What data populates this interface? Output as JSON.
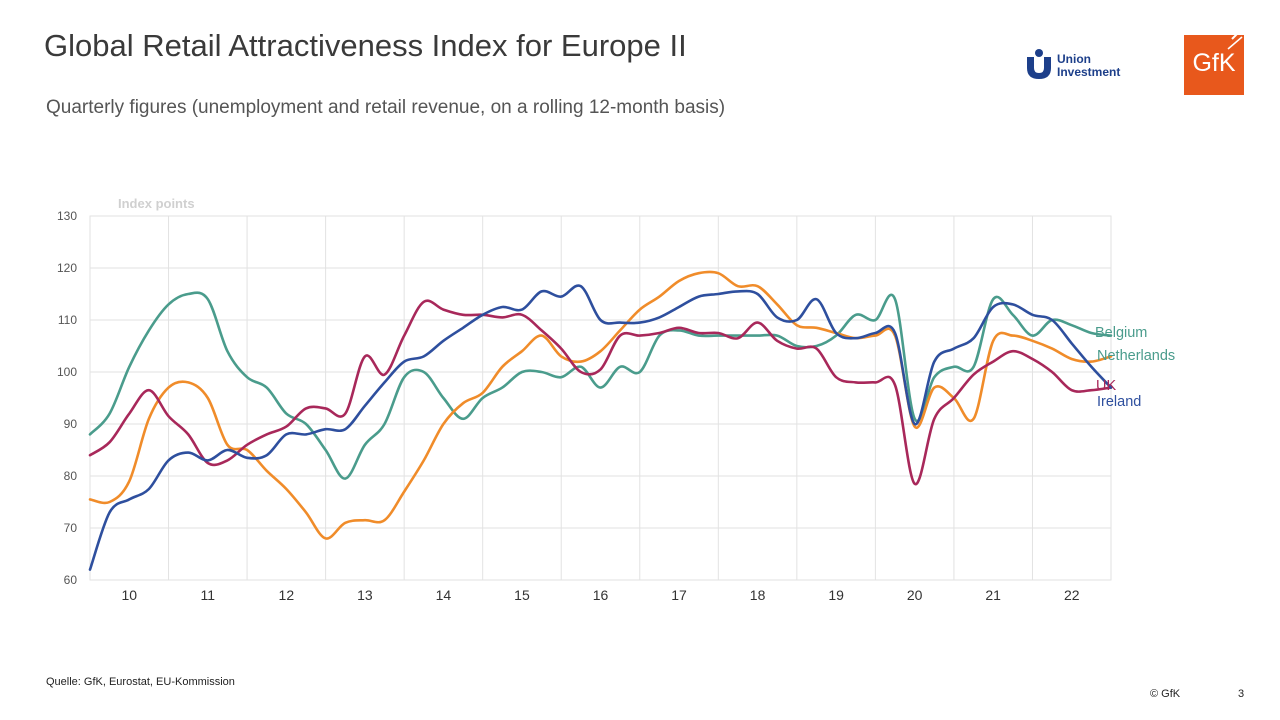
{
  "header": {
    "title": "Global Retail Attractiveness Index for Europe II",
    "subtitle": "Quarterly figures (unemployment and retail revenue, on a rolling 12-month basis)"
  },
  "logos": {
    "union_investment": "Union\nInvestment",
    "gfk": "GfK"
  },
  "footer": {
    "source": "Quelle: GfK, Eurostat, EU-Kommission",
    "copyright": "© GfK",
    "page": "3"
  },
  "colors": {
    "Belgium": "#4a9c8c",
    "Netherlands": "#f08c2a",
    "UK": "#a8285a",
    "Ireland": "#2e4f9e",
    "grid": "#e2e2e2",
    "gfk_orange": "#e8581c"
  },
  "chart_data": {
    "type": "line",
    "ylabel": "Index points",
    "ylim": [
      60,
      130
    ],
    "yticks": [
      60,
      70,
      80,
      90,
      100,
      110,
      120,
      130
    ],
    "xlim": [
      9.5,
      22.5
    ],
    "xticks": [
      "10",
      "11",
      "12",
      "13",
      "14",
      "15",
      "16",
      "17",
      "18",
      "19",
      "20",
      "21",
      "22"
    ],
    "grid": true,
    "legend": "right, at line ends",
    "series": [
      {
        "name": "Belgium",
        "x": [
          9.5,
          9.75,
          10.0,
          10.25,
          10.5,
          10.75,
          11.0,
          11.25,
          11.5,
          11.75,
          12.0,
          12.25,
          12.5,
          12.75,
          13.0,
          13.25,
          13.5,
          13.75,
          14.0,
          14.25,
          14.5,
          14.75,
          15.0,
          15.25,
          15.5,
          15.75,
          16.0,
          16.25,
          16.5,
          16.75,
          17.0,
          17.25,
          17.5,
          17.75,
          18.0,
          18.25,
          18.5,
          18.75,
          19.0,
          19.25,
          19.5,
          19.75,
          20.0,
          20.25,
          20.5,
          20.75,
          21.0,
          21.25,
          21.5,
          21.75,
          22.0,
          22.25,
          22.5
        ],
        "y": [
          88,
          92,
          101,
          108,
          113,
          115,
          114,
          104,
          99,
          97,
          92,
          90,
          85,
          79.5,
          86,
          90,
          99,
          100,
          95,
          91,
          95,
          97,
          100,
          100,
          99,
          101,
          97,
          101,
          100,
          107,
          108,
          107,
          107,
          107,
          107,
          107,
          105,
          105,
          107,
          111,
          110,
          114,
          91,
          99,
          101,
          101,
          114,
          111,
          107,
          110,
          109,
          107.5,
          107
        ]
      },
      {
        "name": "Netherlands",
        "x": [
          9.5,
          9.75,
          10.0,
          10.25,
          10.5,
          10.75,
          11.0,
          11.25,
          11.5,
          11.75,
          12.0,
          12.25,
          12.5,
          12.75,
          13.0,
          13.25,
          13.5,
          13.75,
          14.0,
          14.25,
          14.5,
          14.75,
          15.0,
          15.25,
          15.5,
          15.75,
          16.0,
          16.25,
          16.5,
          16.75,
          17.0,
          17.25,
          17.5,
          17.75,
          18.0,
          18.25,
          18.5,
          18.75,
          19.0,
          19.25,
          19.5,
          19.75,
          20.0,
          20.25,
          20.5,
          20.75,
          21.0,
          21.25,
          21.5,
          21.75,
          22.0,
          22.25,
          22.5
        ],
        "y": [
          75.5,
          75,
          79,
          91,
          97,
          98,
          95,
          86,
          85,
          81,
          77.5,
          73,
          68,
          71,
          71.5,
          71.5,
          77,
          83,
          90,
          94,
          96,
          101,
          104,
          107,
          103,
          102,
          104,
          108,
          112,
          114.5,
          117.5,
          119,
          119,
          116.5,
          116.5,
          113,
          109,
          108.5,
          107.5,
          106.5,
          107,
          107,
          89.5,
          97,
          95,
          91,
          106,
          107,
          106,
          104.5,
          102.5,
          102,
          103
        ]
      },
      {
        "name": "UK",
        "x": [
          9.5,
          9.75,
          10.0,
          10.25,
          10.5,
          10.75,
          11.0,
          11.25,
          11.5,
          11.75,
          12.0,
          12.25,
          12.5,
          12.75,
          13.0,
          13.25,
          13.5,
          13.75,
          14.0,
          14.25,
          14.5,
          14.75,
          15.0,
          15.25,
          15.5,
          15.75,
          16.0,
          16.25,
          16.5,
          16.75,
          17.0,
          17.25,
          17.5,
          17.75,
          18.0,
          18.25,
          18.5,
          18.75,
          19.0,
          19.25,
          19.5,
          19.75,
          20.0,
          20.25,
          20.5,
          20.75,
          21.0,
          21.25,
          21.5,
          21.75,
          22.0,
          22.25,
          22.5
        ],
        "y": [
          84,
          86.5,
          92,
          96.5,
          91.5,
          88,
          82.5,
          83,
          86,
          88,
          89.5,
          93,
          93,
          92,
          103,
          99.5,
          107,
          113.5,
          112,
          111,
          111,
          110.5,
          111,
          108,
          104.5,
          100,
          100.5,
          107,
          107,
          107.5,
          108.5,
          107.5,
          107.5,
          106.5,
          109.5,
          106,
          104.5,
          104.5,
          99,
          98,
          98,
          97.5,
          78.5,
          91,
          95,
          99.5,
          102,
          104,
          102.5,
          100,
          96.5,
          96.5,
          97
        ]
      },
      {
        "name": "Ireland",
        "x": [
          9.5,
          9.75,
          10.0,
          10.25,
          10.5,
          10.75,
          11.0,
          11.25,
          11.5,
          11.75,
          12.0,
          12.25,
          12.5,
          12.75,
          13.0,
          13.25,
          13.5,
          13.75,
          14.0,
          14.25,
          14.5,
          14.75,
          15.0,
          15.25,
          15.5,
          15.75,
          16.0,
          16.25,
          16.5,
          16.75,
          17.0,
          17.25,
          17.5,
          17.75,
          18.0,
          18.25,
          18.5,
          18.75,
          19.0,
          19.25,
          19.5,
          19.75,
          20.0,
          20.25,
          20.5,
          20.75,
          21.0,
          21.25,
          21.5,
          21.75,
          22.0,
          22.25,
          22.5
        ],
        "y": [
          62,
          73,
          75.5,
          77.5,
          83,
          84.5,
          83,
          85,
          83.5,
          84,
          88,
          88,
          89,
          89,
          93.5,
          98,
          102,
          103,
          106,
          108.5,
          111,
          112.5,
          112,
          115.5,
          114.5,
          116.5,
          110,
          109.5,
          109.5,
          110.5,
          112.5,
          114.5,
          115,
          115.5,
          115,
          110.5,
          110,
          114,
          107.5,
          106.5,
          107.5,
          107.5,
          90,
          102,
          104.5,
          106.5,
          112.5,
          113,
          111,
          110,
          105.5,
          101,
          97
        ]
      }
    ]
  }
}
